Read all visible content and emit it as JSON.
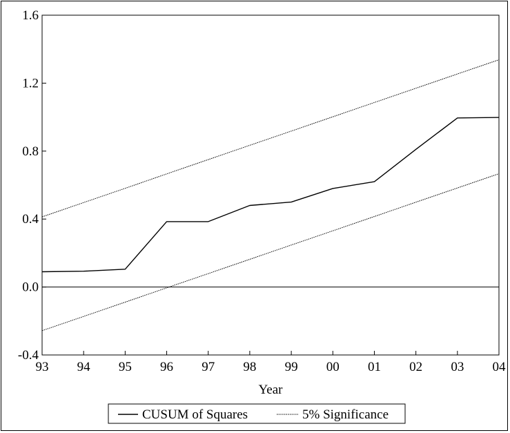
{
  "chart_data": {
    "type": "line",
    "x": [
      "93",
      "94",
      "95",
      "96",
      "97",
      "98",
      "99",
      "00",
      "01",
      "02",
      "03",
      "04"
    ],
    "xlabel": "Year",
    "ylabel": "",
    "ylim": [
      -0.4,
      1.6
    ],
    "yticks": [
      "-0.4",
      "0.0",
      "0.4",
      "0.8",
      "1.2",
      "1.6"
    ],
    "grid": false,
    "legend_position": "bottom",
    "series": [
      {
        "name": "CUSUM of Squares",
        "style": "solid",
        "color": "#000000",
        "values": [
          0.09,
          0.093,
          0.105,
          0.385,
          0.385,
          0.48,
          0.5,
          0.58,
          0.62,
          0.81,
          0.995,
          0.998
        ]
      },
      {
        "name": "5% Significance",
        "style": "dotted",
        "color": "#000000",
        "values": [
          0.413,
          0.497,
          0.581,
          0.666,
          0.75,
          0.834,
          0.918,
          1.002,
          1.086,
          1.17,
          1.254,
          1.338
        ]
      },
      {
        "name": "",
        "style": "dotted",
        "color": "#000000",
        "values": [
          -0.257,
          -0.173,
          -0.089,
          -0.005,
          0.079,
          0.163,
          0.247,
          0.331,
          0.415,
          0.499,
          0.583,
          0.667
        ]
      }
    ],
    "reference_line": 0.0
  }
}
